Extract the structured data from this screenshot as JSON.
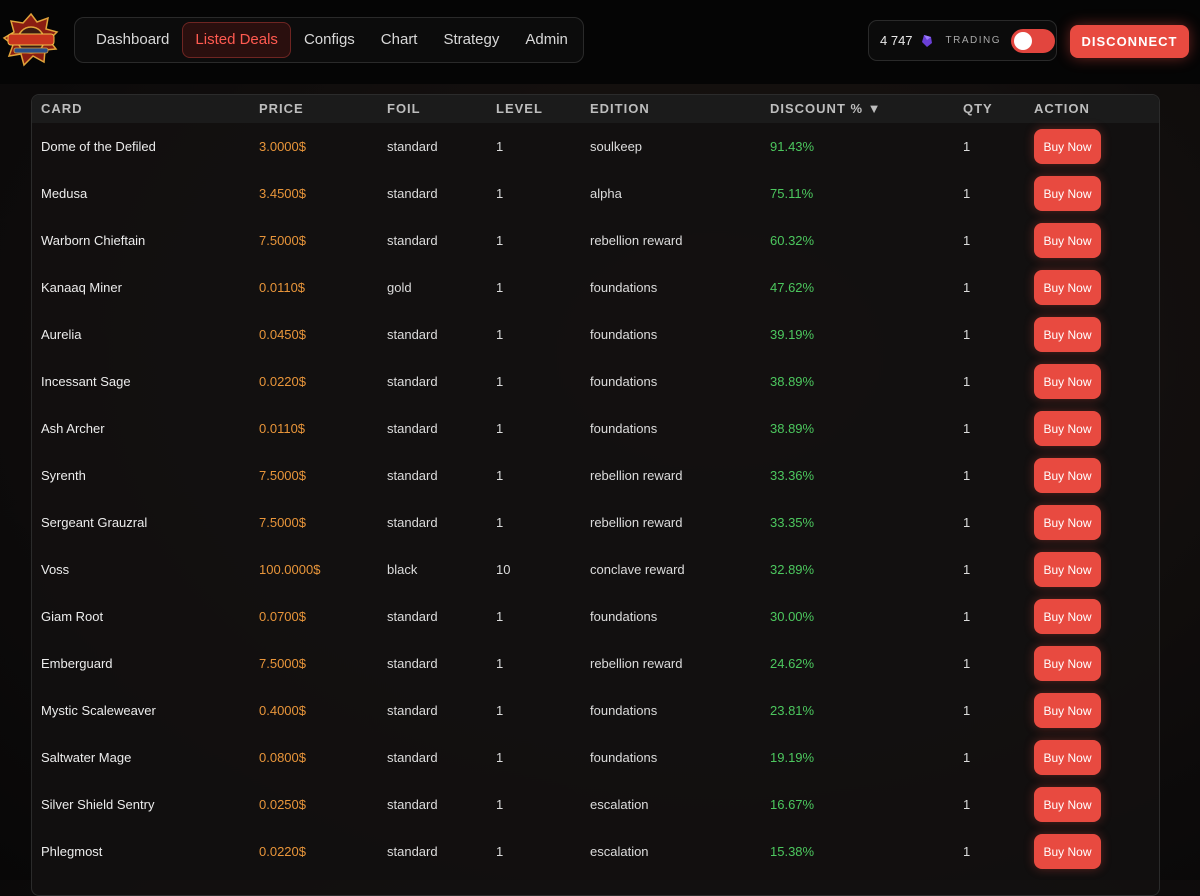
{
  "nav": {
    "items": [
      {
        "label": "Dashboard",
        "active": false
      },
      {
        "label": "Listed Deals",
        "active": true
      },
      {
        "label": "Configs",
        "active": false
      },
      {
        "label": "Chart",
        "active": false
      },
      {
        "label": "Strategy",
        "active": false
      },
      {
        "label": "Admin",
        "active": false
      }
    ]
  },
  "wallet": {
    "balance": "4 747",
    "currency_icon": "purple-gem-icon",
    "trading_label": "TRADING",
    "trading_enabled": false
  },
  "disconnect_label": "DISCONNECT",
  "colors": {
    "accent_red": "#e84a40",
    "price_orange": "#e8953a",
    "discount_green": "#4cc75e"
  },
  "table": {
    "headers": {
      "card": "CARD",
      "price": "PRICE",
      "foil": "FOIL",
      "level": "LEVEL",
      "edition": "EDITION",
      "discount": "DISCOUNT % ▼",
      "qty": "QTY",
      "action": "ACTION"
    },
    "buy_label": "Buy Now",
    "rows": [
      {
        "card": "Dome of the Defiled",
        "price": "3.0000$",
        "foil": "standard",
        "level": "1",
        "edition": "soulkeep",
        "discount": "91.43%",
        "qty": "1"
      },
      {
        "card": "Medusa",
        "price": "3.4500$",
        "foil": "standard",
        "level": "1",
        "edition": "alpha",
        "discount": "75.11%",
        "qty": "1"
      },
      {
        "card": "Warborn Chieftain",
        "price": "7.5000$",
        "foil": "standard",
        "level": "1",
        "edition": "rebellion reward",
        "discount": "60.32%",
        "qty": "1"
      },
      {
        "card": "Kanaaq Miner",
        "price": "0.0110$",
        "foil": "gold",
        "level": "1",
        "edition": "foundations",
        "discount": "47.62%",
        "qty": "1"
      },
      {
        "card": "Aurelia",
        "price": "0.0450$",
        "foil": "standard",
        "level": "1",
        "edition": "foundations",
        "discount": "39.19%",
        "qty": "1"
      },
      {
        "card": "Incessant Sage",
        "price": "0.0220$",
        "foil": "standard",
        "level": "1",
        "edition": "foundations",
        "discount": "38.89%",
        "qty": "1"
      },
      {
        "card": "Ash Archer",
        "price": "0.0110$",
        "foil": "standard",
        "level": "1",
        "edition": "foundations",
        "discount": "38.89%",
        "qty": "1"
      },
      {
        "card": "Syrenth",
        "price": "7.5000$",
        "foil": "standard",
        "level": "1",
        "edition": "rebellion reward",
        "discount": "33.36%",
        "qty": "1"
      },
      {
        "card": "Sergeant Grauzral",
        "price": "7.5000$",
        "foil": "standard",
        "level": "1",
        "edition": "rebellion reward",
        "discount": "33.35%",
        "qty": "1"
      },
      {
        "card": "Voss",
        "price": "100.0000$",
        "foil": "black",
        "level": "10",
        "edition": "conclave reward",
        "discount": "32.89%",
        "qty": "1"
      },
      {
        "card": "Giam Root",
        "price": "0.0700$",
        "foil": "standard",
        "level": "1",
        "edition": "foundations",
        "discount": "30.00%",
        "qty": "1"
      },
      {
        "card": "Emberguard",
        "price": "7.5000$",
        "foil": "standard",
        "level": "1",
        "edition": "rebellion reward",
        "discount": "24.62%",
        "qty": "1"
      },
      {
        "card": "Mystic Scaleweaver",
        "price": "0.4000$",
        "foil": "standard",
        "level": "1",
        "edition": "foundations",
        "discount": "23.81%",
        "qty": "1"
      },
      {
        "card": "Saltwater Mage",
        "price": "0.0800$",
        "foil": "standard",
        "level": "1",
        "edition": "foundations",
        "discount": "19.19%",
        "qty": "1"
      },
      {
        "card": "Silver Shield Sentry",
        "price": "0.0250$",
        "foil": "standard",
        "level": "1",
        "edition": "escalation",
        "discount": "16.67%",
        "qty": "1"
      },
      {
        "card": "Phlegmost",
        "price": "0.0220$",
        "foil": "standard",
        "level": "1",
        "edition": "escalation",
        "discount": "15.38%",
        "qty": "1"
      }
    ]
  }
}
